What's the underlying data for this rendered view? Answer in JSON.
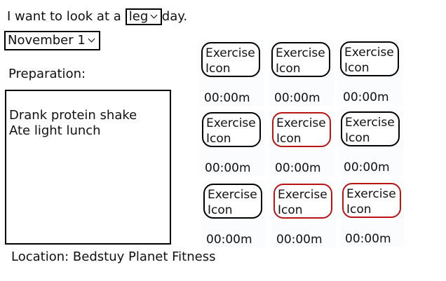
{
  "intro": {
    "prefix": "I want to look at a",
    "workout_type": "leg",
    "suffix": "day."
  },
  "date_select": {
    "value": "November 1"
  },
  "preparation": {
    "label": "Preparation:",
    "notes": [
      "Drank protein shake",
      "Ate light lunch"
    ]
  },
  "location": {
    "text": "Location: Bedstuy Planet Fitness"
  },
  "exercises": [
    {
      "line1": "Exercise",
      "line2": "Icon",
      "time": "00:00m",
      "flagged": false
    },
    {
      "line1": "Exercise",
      "line2": "Icon",
      "time": "00:00m",
      "flagged": false
    },
    {
      "line1": "Exercise",
      "line2": "Icon",
      "time": "00:00m",
      "flagged": false
    },
    {
      "line1": "Exercise",
      "line2": "Icon",
      "time": "00:00m",
      "flagged": false
    },
    {
      "line1": "Exercise",
      "line2": "Icon",
      "time": "00:00m",
      "flagged": true
    },
    {
      "line1": "Exercise",
      "line2": "Icon",
      "time": "00:00m",
      "flagged": false
    },
    {
      "line1": "Exercise",
      "line2": "Icon",
      "time": "00:00m",
      "flagged": false
    },
    {
      "line1": "Exercise",
      "line2": "Icon",
      "time": "00:00m",
      "flagged": true
    },
    {
      "line1": "Exercise",
      "line2": "Icon",
      "time": "00:00m",
      "flagged": true
    }
  ],
  "colors": {
    "flagged_border": "#b81414",
    "normal_border": "#000000"
  }
}
